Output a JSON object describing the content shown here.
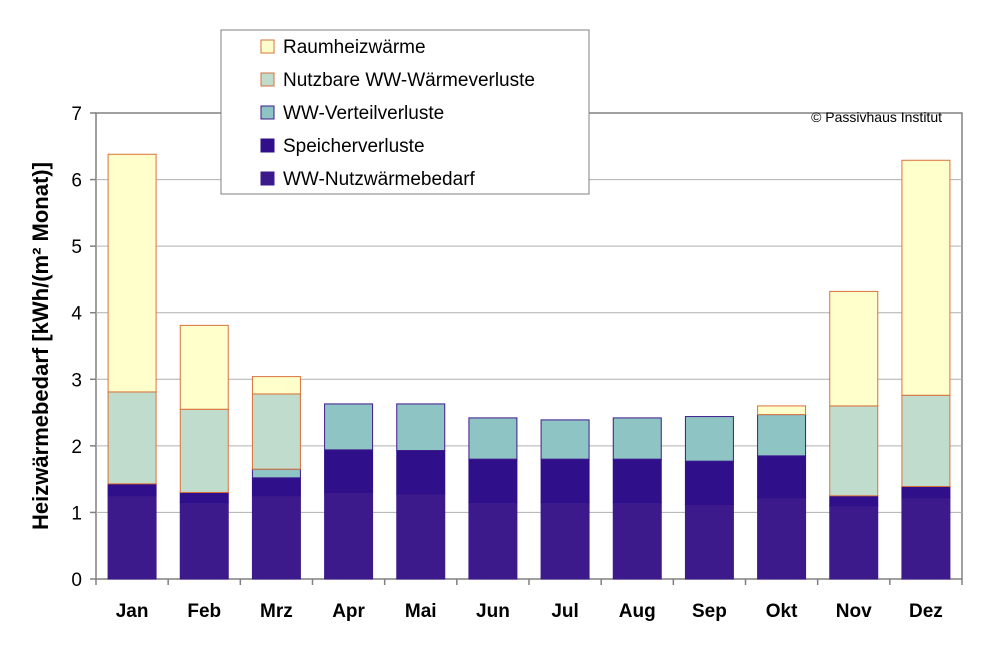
{
  "chart_data": {
    "type": "bar",
    "stacked": true,
    "ylabel": "Heizwärmebedarf [kWh/(m² Monat)]",
    "ylim": [
      0,
      7
    ],
    "yticks": [
      0,
      1,
      2,
      3,
      4,
      5,
      6,
      7
    ],
    "grid": true,
    "legend_position": "top-left",
    "copyright": "© Passivhaus Institut",
    "categories": [
      "Jan",
      "Feb",
      "Mrz",
      "Apr",
      "Mai",
      "Jun",
      "Jul",
      "Aug",
      "Sep",
      "Okt",
      "Nov",
      "Dez"
    ],
    "series": [
      {
        "name": "WW-Nutzwärmebedarf",
        "color": "#3c1a8c",
        "border": "#3c1a8c",
        "values": [
          1.25,
          1.15,
          1.25,
          1.3,
          1.28,
          1.15,
          1.15,
          1.15,
          1.12,
          1.22,
          1.1,
          1.22
        ]
      },
      {
        "name": "Speicherverluste",
        "color": "#2f0f8a",
        "border": "#2f0f8a",
        "values": [
          0.18,
          0.15,
          0.27,
          0.64,
          0.65,
          0.65,
          0.65,
          0.65,
          0.65,
          0.63,
          0.15,
          0.17
        ]
      },
      {
        "name": "WW-Verteilverluste",
        "color": "#8fc4c4",
        "border": "#3c1a8c",
        "values": [
          0.0,
          0.0,
          0.13,
          0.69,
          0.7,
          0.62,
          0.59,
          0.62,
          0.67,
          0.62,
          0.0,
          0.0
        ]
      },
      {
        "name": "Nutzbare WW-Wärmeverluste",
        "color": "#bfdccc",
        "border": "#d9713a",
        "values": [
          1.38,
          1.25,
          1.13,
          0.0,
          0.0,
          0.0,
          0.0,
          0.0,
          0.0,
          0.0,
          1.35,
          1.37
        ]
      },
      {
        "name": "Raumheizwärme",
        "color": "#ffffcc",
        "border": "#d9713a",
        "values": [
          3.57,
          1.26,
          0.26,
          0.0,
          0.0,
          0.0,
          0.0,
          0.0,
          0.0,
          0.13,
          1.72,
          3.53
        ]
      }
    ],
    "legend_order": [
      "Raumheizwärme",
      "Nutzbare WW-Wärmeverluste",
      "WW-Verteilverluste",
      "Speicherverluste",
      "WW-Nutzwärmebedarf"
    ]
  }
}
